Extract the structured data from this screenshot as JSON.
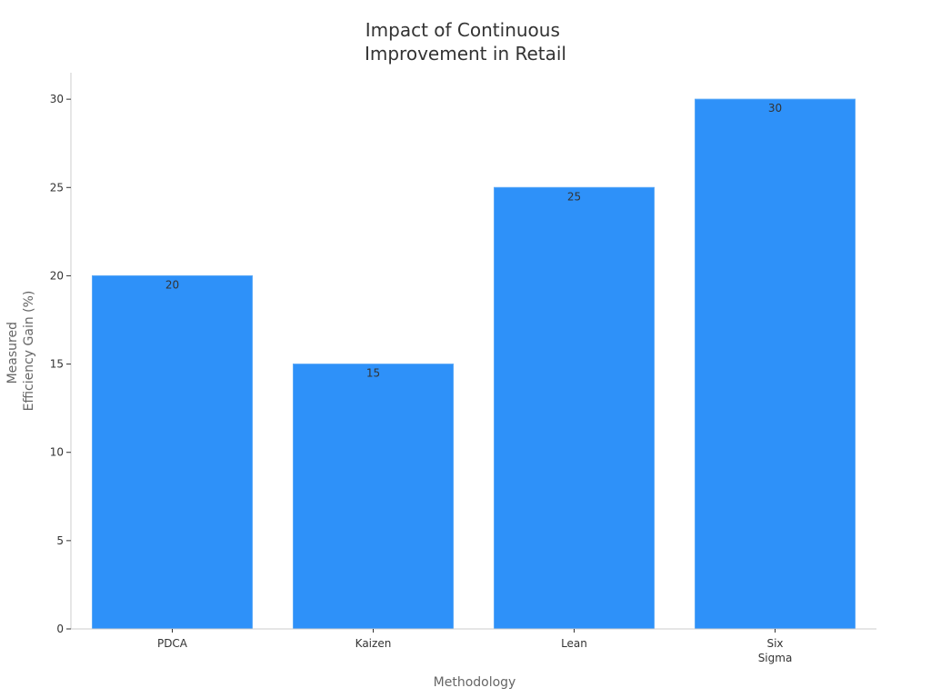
{
  "chart_data": {
    "type": "bar",
    "title": [
      "Impact of Continuous",
      "Improvement in Retail"
    ],
    "xlabel": "Methodology",
    "ylabel": [
      "Measured",
      "Efficiency Gain (%)"
    ],
    "categories": [
      [
        "PDCA"
      ],
      [
        "Kaizen"
      ],
      [
        "Lean"
      ],
      [
        "Six",
        "Sigma"
      ]
    ],
    "values": [
      20,
      15,
      25,
      30
    ],
    "ylim": [
      0,
      31.5
    ],
    "yticks": [
      0,
      5,
      10,
      15,
      20,
      25,
      30
    ],
    "grid": false,
    "colors": {
      "bar": "#2e91f9",
      "bar_edge": "#5aa8f7"
    }
  }
}
